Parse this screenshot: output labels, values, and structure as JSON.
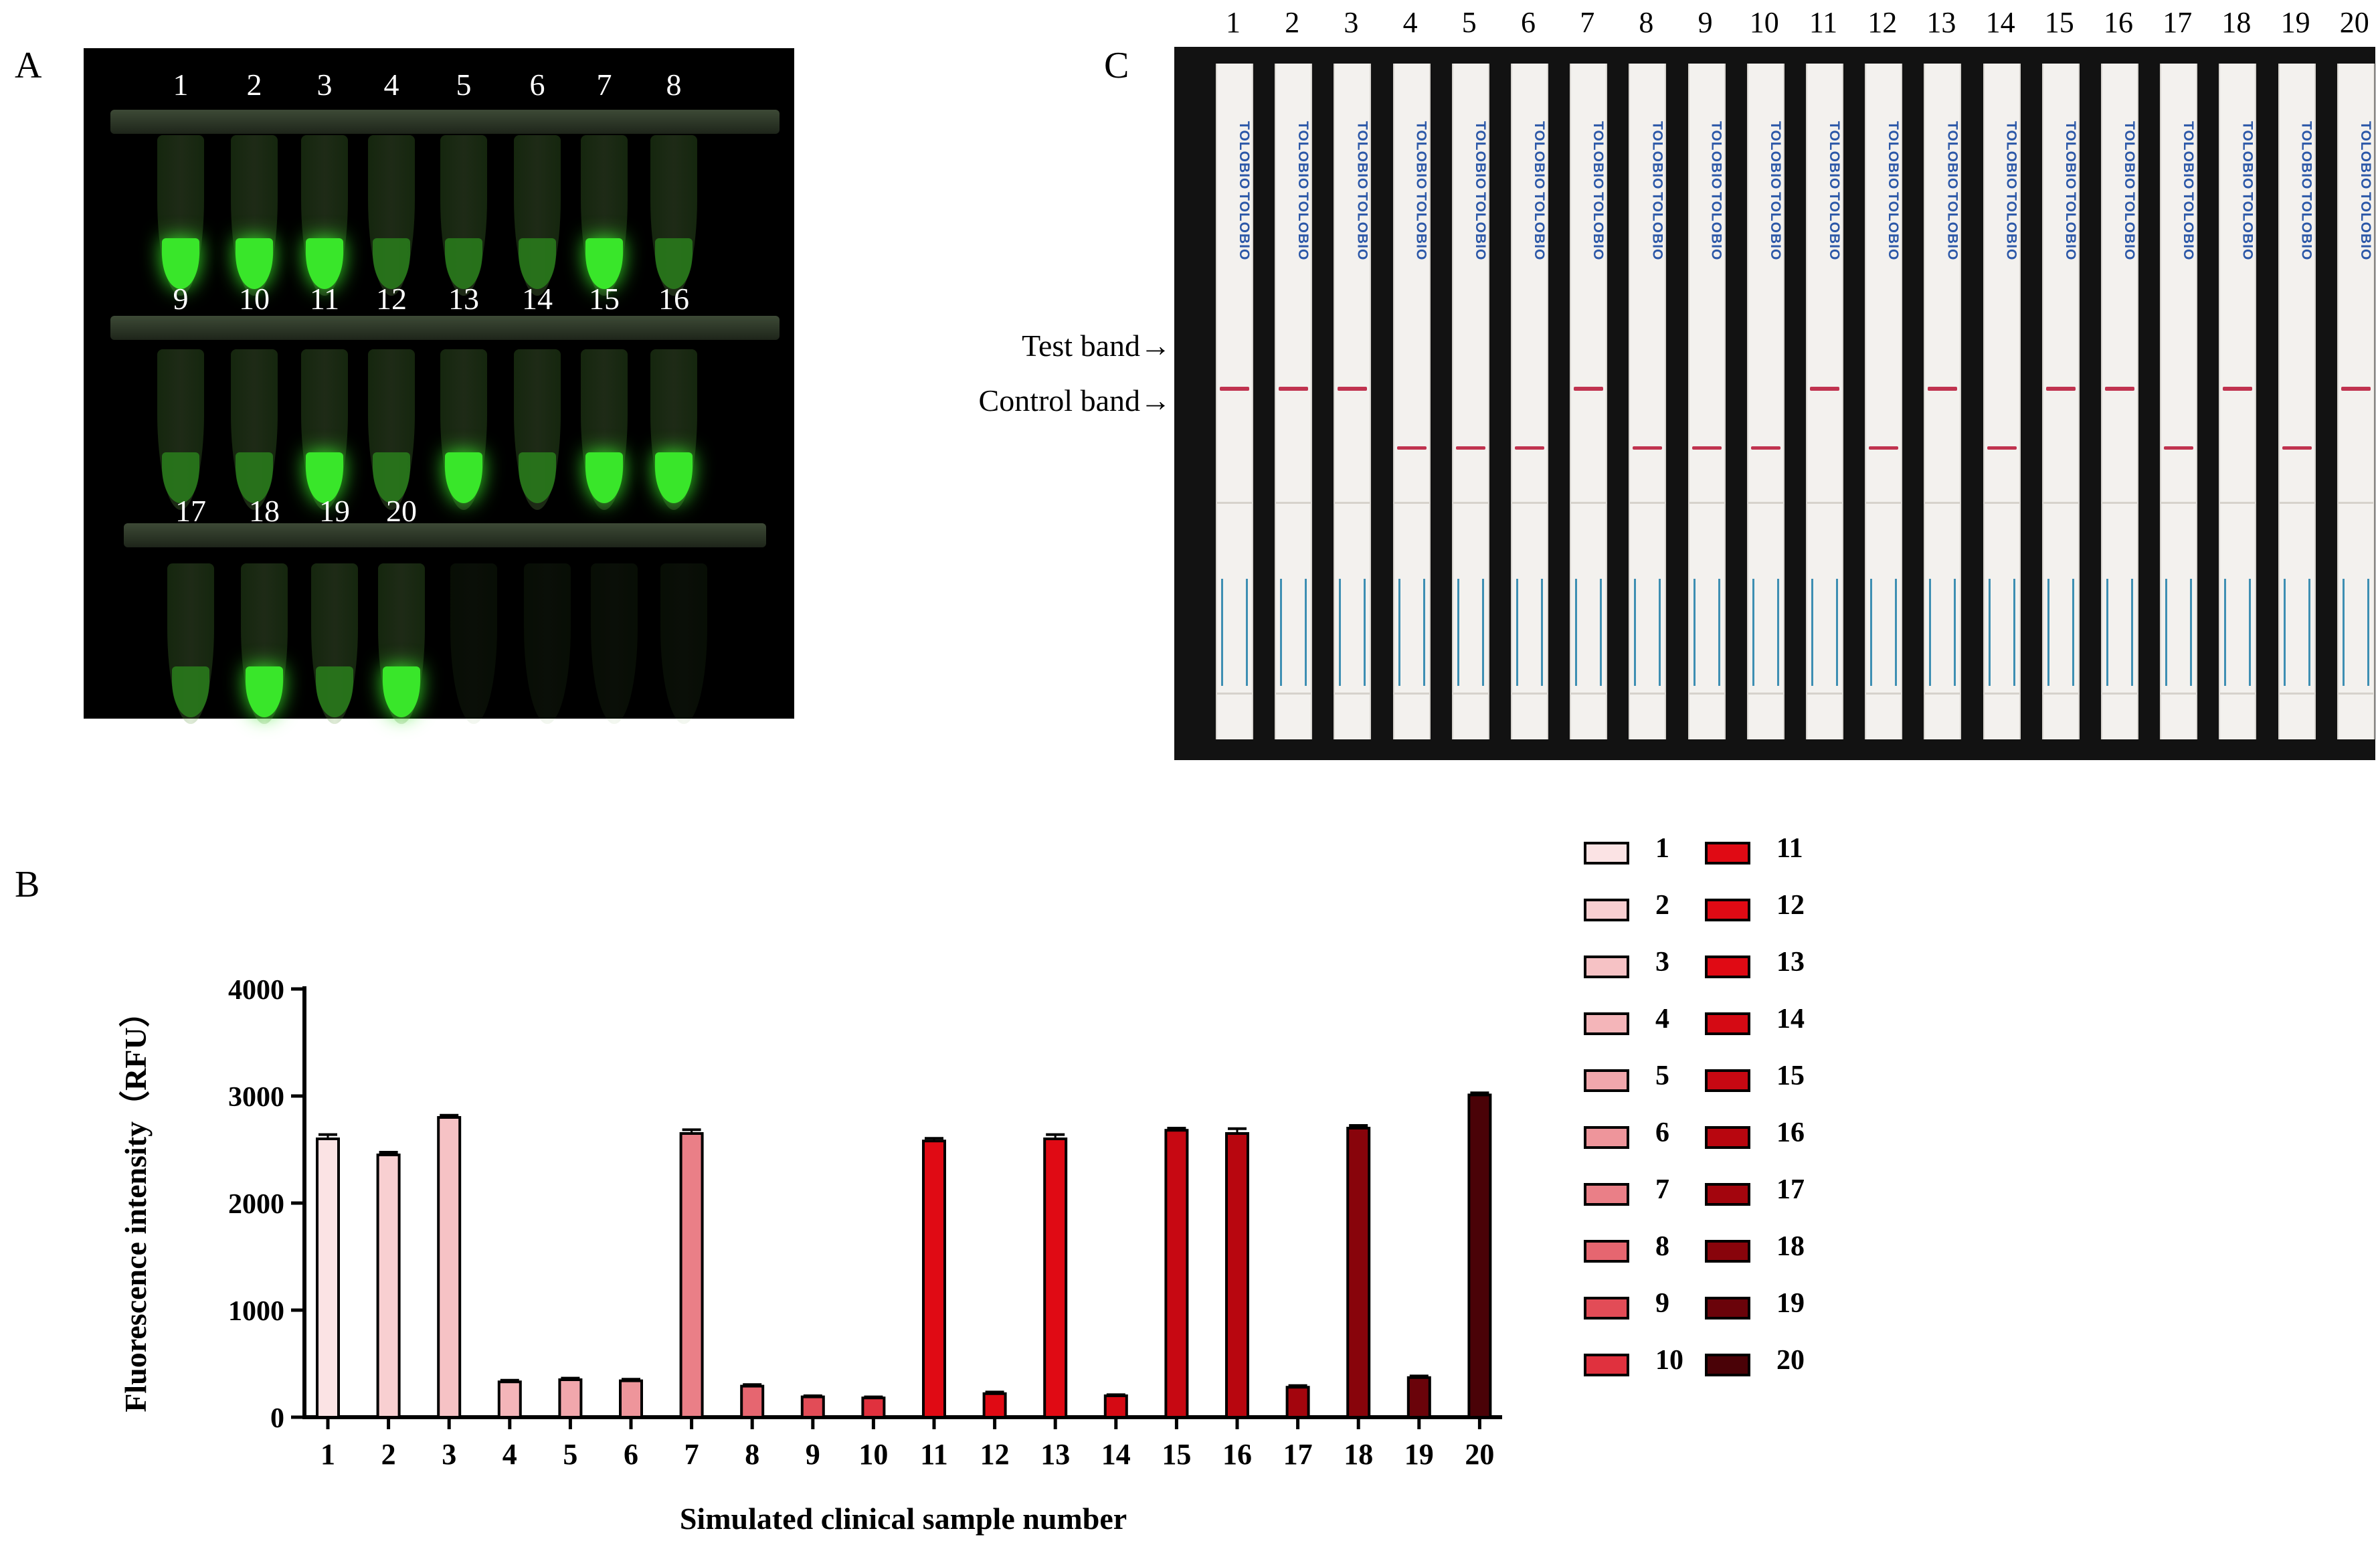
{
  "panels": {
    "a": {
      "letter": "A",
      "tube_labels": [
        "1",
        "2",
        "3",
        "4",
        "5",
        "6",
        "7",
        "8",
        "9",
        "10",
        "11",
        "12",
        "13",
        "14",
        "15",
        "16",
        "17",
        "18",
        "19",
        "20"
      ]
    },
    "b": {
      "letter": "B"
    },
    "c": {
      "letter": "C",
      "strip_labels": [
        "1",
        "2",
        "3",
        "4",
        "5",
        "6",
        "7",
        "8",
        "9",
        "10",
        "11",
        "12",
        "13",
        "14",
        "15",
        "16",
        "17",
        "18",
        "19",
        "20"
      ],
      "strip_brand": "TOLOBIO",
      "test_band_label": "Test band→",
      "control_band_label": "Control band→"
    }
  },
  "tube_fluorescence": [
    0.9,
    0.9,
    0.9,
    0.3,
    0.3,
    0.3,
    0.9,
    0.3,
    0.25,
    0.25,
    0.9,
    0.25,
    0.9,
    0.25,
    0.9,
    0.9,
    0.2,
    0.9,
    0.25,
    0.9
  ],
  "strip_results": {
    "test_band": [
      1,
      1,
      1,
      0,
      0,
      0,
      1,
      0,
      0,
      0,
      1,
      0,
      1,
      0,
      1,
      1,
      0,
      1,
      0,
      1
    ],
    "control_band": [
      0,
      0,
      0,
      1,
      1,
      1,
      0,
      1,
      1,
      1,
      0,
      1,
      0,
      1,
      0,
      0,
      1,
      0,
      1,
      0
    ]
  },
  "colors": {
    "fluor_bright": "#39e62a",
    "fluor_dim": "#2c8a1e",
    "band": "#c0334f",
    "bar_shades": [
      "#fbe3e4",
      "#f8cfd1",
      "#f6c2c5",
      "#f4b5b9",
      "#f1a7ac",
      "#ee959b",
      "#ea7f87",
      "#e66670",
      "#e24c57",
      "#e0313e",
      "#e00a14",
      "#e00a14",
      "#e00a14",
      "#d50a14",
      "#c70812",
      "#b8060f",
      "#a3050d",
      "#88040b",
      "#6a030a",
      "#4a0207"
    ]
  },
  "chart_data": {
    "type": "bar",
    "categories": [
      "1",
      "2",
      "3",
      "4",
      "5",
      "6",
      "7",
      "8",
      "9",
      "10",
      "11",
      "12",
      "13",
      "14",
      "15",
      "16",
      "17",
      "18",
      "19",
      "20"
    ],
    "values": [
      2600,
      2450,
      2800,
      330,
      350,
      340,
      2650,
      290,
      190,
      180,
      2580,
      220,
      2600,
      200,
      2680,
      2650,
      280,
      2700,
      370,
      3010
    ],
    "errors": [
      40,
      25,
      20,
      15,
      15,
      15,
      35,
      15,
      10,
      10,
      25,
      15,
      40,
      10,
      20,
      45,
      15,
      25,
      15,
      20
    ],
    "xlabel": "Simulated clinical sample number",
    "ylabel": "Fluorescence intensity（RFU）",
    "ylim": [
      0,
      4000
    ],
    "yticks": [
      "0",
      "1000",
      "2000",
      "3000",
      "4000"
    ],
    "legend": {
      "placement": "right",
      "entries": [
        "1",
        "2",
        "3",
        "4",
        "5",
        "6",
        "7",
        "8",
        "9",
        "10",
        "11",
        "12",
        "13",
        "14",
        "15",
        "16",
        "17",
        "18",
        "19",
        "20"
      ]
    },
    "grid": false
  }
}
